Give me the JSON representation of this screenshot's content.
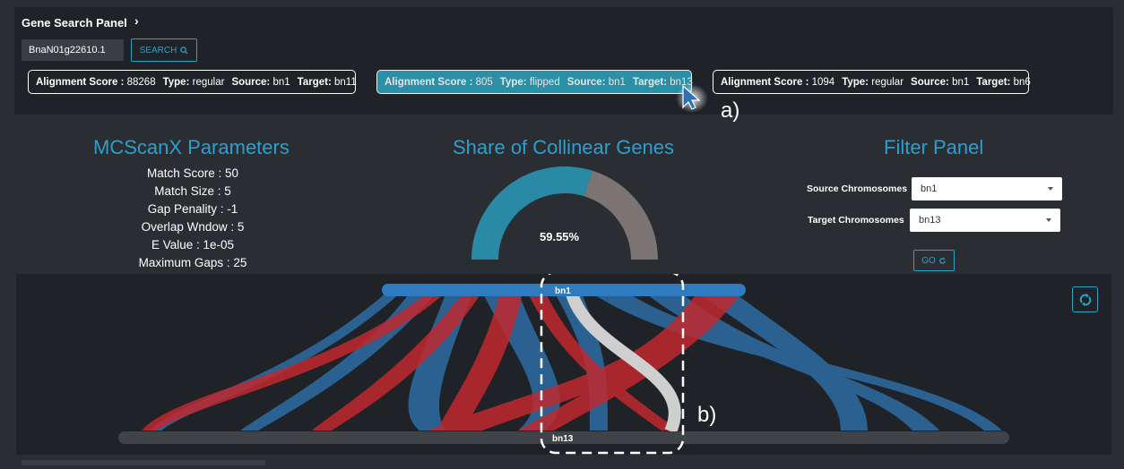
{
  "search_panel": {
    "title": "Gene Search Panel",
    "chevron": "›",
    "gene_value": "BnaN01g22610.1",
    "search_label": "SEARCH",
    "results": [
      {
        "score_label": "Alignment Score :",
        "score": "88268",
        "type_label": "Type:",
        "type": "regular",
        "source_label": "Source:",
        "source": "bn1",
        "target_label": "Target:",
        "target": "bn11"
      },
      {
        "score_label": "Alignment Score :",
        "score": "805",
        "type_label": "Type:",
        "type": "flipped",
        "source_label": "Source:",
        "source": "bn1",
        "target_label": "Target:",
        "target": "bn13"
      },
      {
        "score_label": "Alignment Score :",
        "score": "1094",
        "type_label": "Type:",
        "type": "regular",
        "source_label": "Source:",
        "source": "bn1",
        "target_label": "Target:",
        "target": "bn6"
      }
    ]
  },
  "params": {
    "title": "MCScanX Parameters",
    "items": [
      "Match Score : 50",
      "Match Size : 5",
      "Gap Penality : -1",
      "Overlap Wndow : 5",
      "E Value : 1e-05",
      "Maximum Gaps : 25"
    ]
  },
  "share": {
    "title": "Share of Collinear Genes",
    "percent_label": "59.55%",
    "fraction": 0.5955,
    "colors": {
      "filled": "#2a8aa6",
      "rest": "#7b7472"
    }
  },
  "filter": {
    "title": "Filter Panel",
    "source_label": "Source Chromosomes",
    "source_value": "bn1",
    "target_label": "Target Chromosomes",
    "target_value": "bn13",
    "go_label": "GO"
  },
  "viz": {
    "top_chrom": "bn1",
    "bottom_chrom": "bn13",
    "colors": {
      "regular": "#2e6da4",
      "flipped": "#c0282f",
      "highlight": "#cfcfcf",
      "top_bar": "#2e7bbf",
      "bottom_bar": "#404347"
    }
  },
  "annotations": {
    "a": "a)",
    "b": "b)"
  },
  "icons": {
    "search": "search-icon",
    "refresh": "refresh-icon",
    "cursor": "cursor-icon"
  }
}
